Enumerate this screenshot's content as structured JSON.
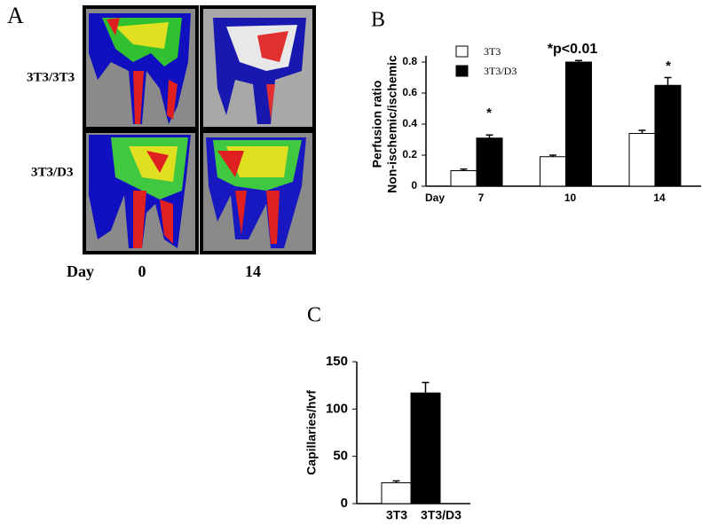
{
  "panel_a": {
    "letter": "A",
    "rows": [
      "3T3/3T3",
      "3T3/D3"
    ],
    "x_label": "Day",
    "columns": [
      "0",
      "14"
    ]
  },
  "chart_data": [
    {
      "type": "bar",
      "letter": "B",
      "ylabel": [
        "Perfusion ratio",
        "Non-ischemic/ischemic"
      ],
      "xlabel": "Day",
      "categories": [
        "7",
        "10",
        "14"
      ],
      "series": [
        {
          "name": "3T3",
          "color": "#ffffff",
          "values": [
            0.1,
            0.19,
            0.34
          ],
          "errors": [
            0.01,
            0.01,
            0.02
          ]
        },
        {
          "name": "3T3/D3",
          "color": "#000000",
          "values": [
            0.31,
            0.8,
            0.65
          ],
          "errors": [
            0.02,
            0.01,
            0.05
          ]
        }
      ],
      "annotations": [
        "*",
        "*p<0.01",
        "*"
      ],
      "ylim": [
        0,
        0.84
      ],
      "yticks": [
        0,
        0.2,
        0.4,
        0.6,
        0.8
      ],
      "legend": "top-left"
    },
    {
      "type": "bar",
      "letter": "C",
      "ylabel": "Capillaries/hvf",
      "categories": [
        "3T3",
        "3T3/D3"
      ],
      "values": [
        22,
        117
      ],
      "errors": [
        2,
        11
      ],
      "colors": [
        "#ffffff",
        "#000000"
      ],
      "ylim": [
        0,
        150
      ],
      "yticks": [
        0,
        50,
        100,
        150
      ]
    }
  ]
}
